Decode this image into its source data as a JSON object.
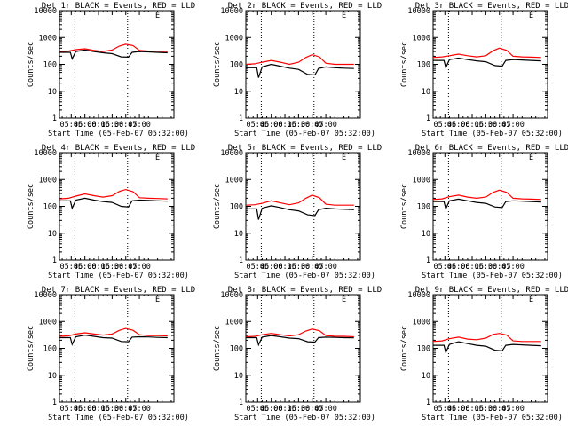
{
  "figure": {
    "panels": [
      {
        "title": "Det 1r BLACK = Events, RED = LLD",
        "ylabel": "Counts/sec",
        "xlabel": "Start Time (05-Feb-07 05:32:00)",
        "marker": "E"
      },
      {
        "title": "Det 2r BLACK = Events, RED = LLD",
        "ylabel": "Counts/sec",
        "xlabel": "Start Time (05-Feb-07 05:32:00)",
        "marker": "E"
      },
      {
        "title": "Det 3r BLACK = Events, RED = LLD",
        "ylabel": "Counts/sec",
        "xlabel": "Start Time (05-Feb-07 05:32:00)",
        "marker": "E"
      },
      {
        "title": "Det 4r BLACK = Events, RED = LLD",
        "ylabel": "Counts/sec",
        "xlabel": "Start Time (05-Feb-07 05:32:00)",
        "marker": "E"
      },
      {
        "title": "Det 5r BLACK = Events, RED = LLD",
        "ylabel": "Counts/sec",
        "xlabel": "Start Time (05-Feb-07 05:32:00)",
        "marker": "E"
      },
      {
        "title": "Det 6r BLACK = Events, RED = LLD",
        "ylabel": "Counts/sec",
        "xlabel": "Start Time (05-Feb-07 05:32:00)",
        "marker": "E"
      },
      {
        "title": "Det 7r BLACK = Events, RED = LLD",
        "ylabel": "Counts/sec",
        "xlabel": "Start Time (05-Feb-07 05:32:00)",
        "marker": "E"
      },
      {
        "title": "Det 8r BLACK = Events, RED = LLD",
        "ylabel": "Counts/sec",
        "xlabel": "Start Time (05-Feb-07 05:32:00)",
        "marker": "E"
      },
      {
        "title": "Det 9r BLACK = Events, RED = LLD",
        "ylabel": "Counts/sec",
        "xlabel": "Start Time (05-Feb-07 05:32:00)",
        "marker": "E"
      }
    ]
  },
  "chart_data": [
    {
      "type": "line",
      "title": "Det 1r BLACK = Events, RED = LLD",
      "xlabel": "Start Time (05-Feb-07 05:32:00)",
      "ylabel": "Counts/sec",
      "x_ticks": [
        "05:45",
        "06:00",
        "06:15",
        "06:30",
        "06:45",
        "07:00"
      ],
      "x_range": [
        "05:32",
        "07:38"
      ],
      "y_ticks": [
        "1",
        "10",
        "100",
        "1000",
        "10000"
      ],
      "ylim": [
        1,
        10000
      ],
      "y_scale": "log",
      "dotted_vlines": [
        "05:49",
        "06:47"
      ],
      "grid": false,
      "series": [
        {
          "name": "LLD",
          "color": "#ff0000",
          "x": [
            "05:32",
            "05:42",
            "05:50",
            "06:00",
            "06:10",
            "06:20",
            "06:30",
            "06:38",
            "06:45",
            "06:53",
            "07:00",
            "07:10",
            "07:20",
            "07:31"
          ],
          "values": [
            300,
            310,
            350,
            380,
            330,
            300,
            340,
            480,
            560,
            500,
            330,
            310,
            310,
            300
          ]
        },
        {
          "name": "Events",
          "color": "#000000",
          "x": [
            "05:32",
            "05:44",
            "05:46",
            "05:50",
            "06:00",
            "06:10",
            "06:20",
            "06:30",
            "06:40",
            "06:48",
            "06:52",
            "07:00",
            "07:10",
            "07:20",
            "07:31"
          ],
          "values": [
            280,
            280,
            160,
            300,
            340,
            300,
            270,
            250,
            190,
            185,
            280,
            300,
            290,
            280,
            270
          ]
        }
      ]
    },
    {
      "type": "line",
      "title": "Det 2r BLACK = Events, RED = LLD",
      "xlabel": "Start Time (05-Feb-07 05:32:00)",
      "ylabel": "Counts/sec",
      "x_ticks": [
        "05:45",
        "06:00",
        "06:15",
        "06:30",
        "06:45",
        "07:00"
      ],
      "x_range": [
        "05:32",
        "07:38"
      ],
      "y_ticks": [
        "1",
        "10",
        "100",
        "1000",
        "10000"
      ],
      "ylim": [
        1,
        10000
      ],
      "y_scale": "log",
      "dotted_vlines": [
        "05:49",
        "06:47"
      ],
      "grid": false,
      "series": [
        {
          "name": "LLD",
          "color": "#ff0000",
          "x": [
            "05:32",
            "05:42",
            "05:50",
            "06:00",
            "06:10",
            "06:20",
            "06:30",
            "06:38",
            "06:45",
            "06:53",
            "07:00",
            "07:10",
            "07:20",
            "07:31"
          ],
          "values": [
            100,
            105,
            120,
            140,
            120,
            100,
            120,
            180,
            230,
            190,
            110,
            100,
            100,
            100
          ]
        },
        {
          "name": "Events",
          "color": "#000000",
          "x": [
            "05:32",
            "05:44",
            "05:46",
            "05:50",
            "06:00",
            "06:10",
            "06:20",
            "06:30",
            "06:40",
            "06:48",
            "06:52",
            "07:00",
            "07:10",
            "07:20",
            "07:31"
          ],
          "values": [
            75,
            75,
            32,
            80,
            100,
            85,
            72,
            65,
            42,
            40,
            70,
            80,
            75,
            72,
            70
          ]
        }
      ]
    },
    {
      "type": "line",
      "title": "Det 3r BLACK = Events, RED = LLD",
      "xlabel": "Start Time (05-Feb-07 05:32:00)",
      "ylabel": "Counts/sec",
      "x_ticks": [
        "05:45",
        "06:00",
        "06:15",
        "06:30",
        "06:45",
        "07:00"
      ],
      "x_range": [
        "05:32",
        "07:38"
      ],
      "y_ticks": [
        "1",
        "10",
        "100",
        "1000",
        "10000"
      ],
      "ylim": [
        1,
        10000
      ],
      "y_scale": "log",
      "dotted_vlines": [
        "05:49",
        "06:47"
      ],
      "grid": false,
      "series": [
        {
          "name": "LLD",
          "color": "#ff0000",
          "x": [
            "05:32",
            "05:42",
            "05:50",
            "06:00",
            "06:10",
            "06:20",
            "06:30",
            "06:38",
            "06:45",
            "06:53",
            "07:00",
            "07:10",
            "07:20",
            "07:31"
          ],
          "values": [
            180,
            190,
            210,
            240,
            210,
            190,
            210,
            320,
            400,
            330,
            200,
            190,
            185,
            180
          ]
        },
        {
          "name": "Events",
          "color": "#000000",
          "x": [
            "05:32",
            "05:44",
            "05:46",
            "05:50",
            "06:00",
            "06:10",
            "06:20",
            "06:30",
            "06:40",
            "06:48",
            "06:52",
            "07:00",
            "07:10",
            "07:20",
            "07:31"
          ],
          "values": [
            140,
            140,
            75,
            150,
            170,
            150,
            135,
            125,
            90,
            85,
            140,
            150,
            145,
            140,
            135
          ]
        }
      ]
    },
    {
      "type": "line",
      "title": "Det 4r BLACK = Events, RED = LLD",
      "xlabel": "Start Time (05-Feb-07 05:32:00)",
      "ylabel": "Counts/sec",
      "x_ticks": [
        "05:45",
        "06:00",
        "06:15",
        "06:30",
        "06:45",
        "07:00"
      ],
      "x_range": [
        "05:32",
        "07:38"
      ],
      "y_ticks": [
        "1",
        "10",
        "100",
        "1000",
        "10000"
      ],
      "ylim": [
        1,
        10000
      ],
      "y_scale": "log",
      "dotted_vlines": [
        "05:49",
        "06:47"
      ],
      "grid": false,
      "series": [
        {
          "name": "LLD",
          "color": "#ff0000",
          "x": [
            "05:32",
            "05:42",
            "05:50",
            "06:00",
            "06:10",
            "06:20",
            "06:30",
            "06:38",
            "06:45",
            "06:53",
            "07:00",
            "07:10",
            "07:20",
            "07:31"
          ],
          "values": [
            190,
            200,
            240,
            290,
            250,
            220,
            250,
            360,
            420,
            350,
            210,
            200,
            195,
            190
          ]
        },
        {
          "name": "Events",
          "color": "#000000",
          "x": [
            "05:32",
            "05:44",
            "05:46",
            "05:50",
            "06:00",
            "06:10",
            "06:20",
            "06:30",
            "06:40",
            "06:48",
            "06:52",
            "07:00",
            "07:10",
            "07:20",
            "07:31"
          ],
          "values": [
            160,
            160,
            85,
            170,
            200,
            170,
            150,
            140,
            100,
            95,
            160,
            170,
            165,
            160,
            155
          ]
        }
      ]
    },
    {
      "type": "line",
      "title": "Det 5r BLACK = Events, RED = LLD",
      "xlabel": "Start Time (05-Feb-07 05:32:00)",
      "ylabel": "Counts/sec",
      "x_ticks": [
        "05:45",
        "06:00",
        "06:15",
        "06:30",
        "06:45",
        "07:00"
      ],
      "x_range": [
        "05:32",
        "07:38"
      ],
      "y_ticks": [
        "1",
        "10",
        "100",
        "1000",
        "10000"
      ],
      "ylim": [
        1,
        10000
      ],
      "y_scale": "log",
      "dotted_vlines": [
        "05:49",
        "06:47"
      ],
      "grid": false,
      "series": [
        {
          "name": "LLD",
          "color": "#ff0000",
          "x": [
            "05:32",
            "05:42",
            "05:50",
            "06:00",
            "06:10",
            "06:20",
            "06:30",
            "06:38",
            "06:45",
            "06:53",
            "07:00",
            "07:10",
            "07:20",
            "07:31"
          ],
          "values": [
            110,
            115,
            130,
            160,
            135,
            115,
            135,
            200,
            260,
            210,
            120,
            110,
            110,
            110
          ]
        },
        {
          "name": "Events",
          "color": "#000000",
          "x": [
            "05:32",
            "05:44",
            "05:46",
            "05:50",
            "06:00",
            "06:10",
            "06:20",
            "06:30",
            "06:40",
            "06:48",
            "06:52",
            "07:00",
            "07:10",
            "07:20",
            "07:31"
          ],
          "values": [
            80,
            80,
            32,
            85,
            105,
            90,
            75,
            68,
            48,
            45,
            75,
            85,
            80,
            78,
            75
          ]
        }
      ]
    },
    {
      "type": "line",
      "title": "Det 6r BLACK = Events, RED = LLD",
      "xlabel": "Start Time (05-Feb-07 05:32:00)",
      "ylabel": "Counts/sec",
      "x_ticks": [
        "05:45",
        "06:00",
        "06:15",
        "06:30",
        "06:45",
        "07:00"
      ],
      "x_range": [
        "05:32",
        "07:38"
      ],
      "y_ticks": [
        "1",
        "10",
        "100",
        "1000",
        "10000"
      ],
      "ylim": [
        1,
        10000
      ],
      "y_scale": "log",
      "dotted_vlines": [
        "05:49",
        "06:47"
      ],
      "grid": false,
      "series": [
        {
          "name": "LLD",
          "color": "#ff0000",
          "x": [
            "05:32",
            "05:42",
            "05:50",
            "06:00",
            "06:10",
            "06:20",
            "06:30",
            "06:38",
            "06:45",
            "06:53",
            "07:00",
            "07:10",
            "07:20",
            "07:31"
          ],
          "values": [
            180,
            190,
            230,
            260,
            220,
            200,
            220,
            330,
            400,
            330,
            200,
            190,
            185,
            180
          ]
        },
        {
          "name": "Events",
          "color": "#000000",
          "x": [
            "05:32",
            "05:44",
            "05:46",
            "05:50",
            "06:00",
            "06:10",
            "06:20",
            "06:30",
            "06:40",
            "06:48",
            "06:52",
            "07:00",
            "07:10",
            "07:20",
            "07:31"
          ],
          "values": [
            150,
            150,
            80,
            160,
            185,
            160,
            140,
            130,
            95,
            90,
            150,
            160,
            155,
            150,
            145
          ]
        }
      ]
    },
    {
      "type": "line",
      "title": "Det 7r BLACK = Events, RED = LLD",
      "xlabel": "Start Time (05-Feb-07 05:32:00)",
      "ylabel": "Counts/sec",
      "x_ticks": [
        "05:45",
        "06:00",
        "06:15",
        "06:30",
        "06:45",
        "07:00"
      ],
      "x_range": [
        "05:32",
        "07:38"
      ],
      "y_ticks": [
        "1",
        "10",
        "100",
        "1000",
        "10000"
      ],
      "ylim": [
        1,
        10000
      ],
      "y_scale": "log",
      "dotted_vlines": [
        "05:49",
        "06:47"
      ],
      "grid": false,
      "series": [
        {
          "name": "LLD",
          "color": "#ff0000",
          "x": [
            "05:32",
            "05:42",
            "05:50",
            "06:00",
            "06:10",
            "06:20",
            "06:30",
            "06:38",
            "06:45",
            "06:53",
            "07:00",
            "07:10",
            "07:20",
            "07:31"
          ],
          "values": [
            280,
            290,
            340,
            380,
            340,
            310,
            340,
            470,
            550,
            470,
            320,
            300,
            300,
            290
          ]
        },
        {
          "name": "Events",
          "color": "#000000",
          "x": [
            "05:32",
            "05:44",
            "05:46",
            "05:50",
            "06:00",
            "06:10",
            "06:20",
            "06:30",
            "06:40",
            "06:48",
            "06:52",
            "07:00",
            "07:10",
            "07:20",
            "07:31"
          ],
          "values": [
            250,
            250,
            140,
            270,
            310,
            280,
            250,
            240,
            180,
            175,
            260,
            270,
            265,
            255,
            250
          ]
        }
      ]
    },
    {
      "type": "line",
      "title": "Det 8r BLACK = Events, RED = LLD",
      "xlabel": "Start Time (05-Feb-07 05:32:00)",
      "ylabel": "Counts/sec",
      "x_ticks": [
        "05:45",
        "06:00",
        "06:15",
        "06:30",
        "06:45",
        "07:00"
      ],
      "x_range": [
        "05:32",
        "07:38"
      ],
      "y_ticks": [
        "1",
        "10",
        "100",
        "1000",
        "10000"
      ],
      "ylim": [
        1,
        10000
      ],
      "y_scale": "log",
      "dotted_vlines": [
        "05:49",
        "06:47"
      ],
      "grid": false,
      "series": [
        {
          "name": "LLD",
          "color": "#ff0000",
          "x": [
            "05:32",
            "05:42",
            "05:50",
            "06:00",
            "06:10",
            "06:20",
            "06:30",
            "06:38",
            "06:45",
            "06:53",
            "07:00",
            "07:10",
            "07:20",
            "07:31"
          ],
          "values": [
            270,
            280,
            320,
            360,
            320,
            290,
            320,
            440,
            520,
            450,
            300,
            280,
            280,
            270
          ]
        },
        {
          "name": "Events",
          "color": "#000000",
          "x": [
            "05:32",
            "05:44",
            "05:46",
            "05:50",
            "06:00",
            "06:10",
            "06:20",
            "06:30",
            "06:40",
            "06:48",
            "06:52",
            "07:00",
            "07:10",
            "07:20",
            "07:31"
          ],
          "values": [
            250,
            250,
            135,
            260,
            300,
            270,
            240,
            230,
            175,
            170,
            250,
            260,
            255,
            250,
            245
          ]
        }
      ]
    },
    {
      "type": "line",
      "title": "Det 9r BLACK = Events, RED = LLD",
      "xlabel": "Start Time (05-Feb-07 05:32:00)",
      "ylabel": "Counts/sec",
      "x_ticks": [
        "05:45",
        "06:00",
        "06:15",
        "06:30",
        "06:45",
        "07:00"
      ],
      "x_range": [
        "05:32",
        "07:38"
      ],
      "y_ticks": [
        "1",
        "10",
        "100",
        "1000",
        "10000"
      ],
      "ylim": [
        1,
        10000
      ],
      "y_scale": "log",
      "dotted_vlines": [
        "05:49",
        "06:47"
      ],
      "grid": false,
      "series": [
        {
          "name": "LLD",
          "color": "#ff0000",
          "x": [
            "05:32",
            "05:42",
            "05:50",
            "06:00",
            "06:10",
            "06:20",
            "06:30",
            "06:38",
            "06:45",
            "06:53",
            "07:00",
            "07:10",
            "07:20",
            "07:31"
          ],
          "values": [
            180,
            190,
            230,
            260,
            220,
            210,
            240,
            330,
            360,
            310,
            190,
            180,
            180,
            180
          ]
        },
        {
          "name": "Events",
          "color": "#000000",
          "x": [
            "05:32",
            "05:44",
            "05:46",
            "05:50",
            "06:00",
            "06:10",
            "06:20",
            "06:30",
            "06:40",
            "06:48",
            "06:52",
            "07:00",
            "07:10",
            "07:20",
            "07:31"
          ],
          "values": [
            130,
            130,
            70,
            140,
            175,
            150,
            130,
            120,
            85,
            80,
            130,
            140,
            135,
            130,
            125
          ]
        }
      ]
    }
  ]
}
